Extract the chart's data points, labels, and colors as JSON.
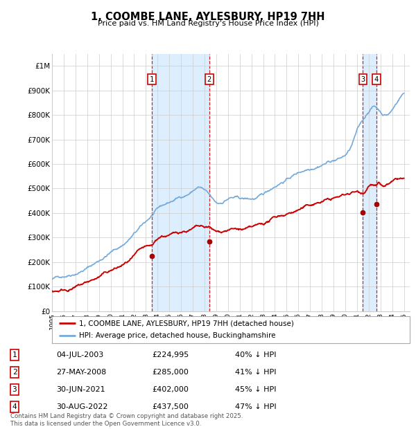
{
  "title": "1, COOMBE LANE, AYLESBURY, HP19 7HH",
  "subtitle": "Price paid vs. HM Land Registry's House Price Index (HPI)",
  "ylim": [
    0,
    1050000
  ],
  "yticks": [
    0,
    100000,
    200000,
    300000,
    400000,
    500000,
    600000,
    700000,
    800000,
    900000,
    1000000
  ],
  "ytick_labels": [
    "£0",
    "£100K",
    "£200K",
    "£300K",
    "£400K",
    "£500K",
    "£600K",
    "£700K",
    "£800K",
    "£900K",
    "£1M"
  ],
  "hpi_color": "#74a9d8",
  "price_color": "#cc0000",
  "background_color": "#ffffff",
  "grid_color": "#cccccc",
  "shade_color": "#ddeeff",
  "sale_year_nums": [
    2003.51,
    2008.41,
    2021.5,
    2022.66
  ],
  "sale_prices": [
    224995,
    285000,
    402000,
    437500
  ],
  "sale_labels": [
    "1",
    "2",
    "3",
    "4"
  ],
  "sale_pcts": [
    "40%",
    "41%",
    "45%",
    "47%"
  ],
  "sale_date_strs": [
    "04-JUL-2003",
    "27-MAY-2008",
    "30-JUN-2021",
    "30-AUG-2022"
  ],
  "sale_price_strs": [
    "£224,995",
    "£285,000",
    "£402,000",
    "£437,500"
  ],
  "legend_label_red": "1, COOMBE LANE, AYLESBURY, HP19 7HH (detached house)",
  "legend_label_blue": "HPI: Average price, detached house, Buckinghamshire",
  "footer": "Contains HM Land Registry data © Crown copyright and database right 2025.\nThis data is licensed under the Open Government Licence v3.0.",
  "xstart": 1995.0,
  "xend": 2025.5
}
